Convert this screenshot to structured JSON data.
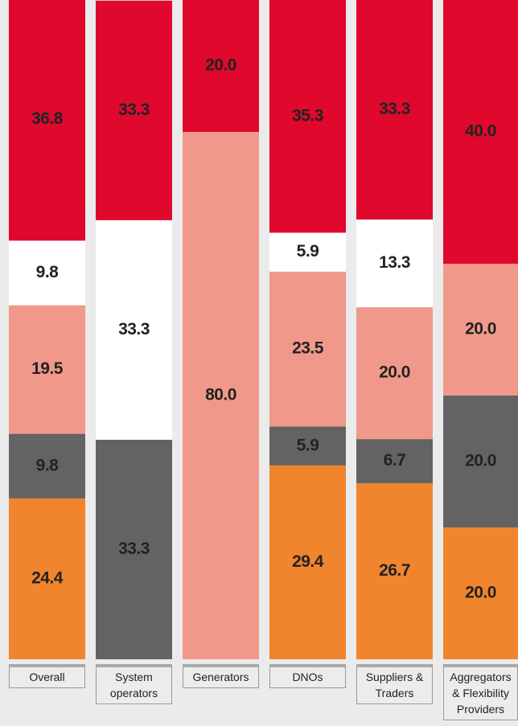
{
  "chart_data": {
    "type": "stacked_bar",
    "categories": [
      "Overall",
      "System\noperators",
      "Generators",
      "DNOs",
      "Suppliers &\nTraders",
      "Aggregators\n& Flexibility\nProviders"
    ],
    "ylim": [
      0,
      100
    ],
    "series": [
      {
        "color": "#f0852d",
        "values": [
          24.4,
          null,
          null,
          29.4,
          26.7,
          20
        ],
        "value_labels": [
          "24.4",
          null,
          null,
          "29.4",
          "26.7",
          "20.0"
        ]
      },
      {
        "color": "#636363",
        "values": [
          9.8,
          33.3,
          null,
          5.9,
          6.7,
          20
        ],
        "value_labels": [
          "9.8",
          "33.3",
          null,
          "5.9",
          "6.7",
          "20.0"
        ]
      },
      {
        "color": "#f0998a",
        "values": [
          19.5,
          null,
          80,
          23.5,
          20,
          20
        ],
        "value_labels": [
          "19.5",
          null,
          "80.0",
          "23.5",
          "20.0",
          "20.0"
        ]
      },
      {
        "color": "#ffffff",
        "values": [
          9.8,
          33.3,
          null,
          5.9,
          13.3,
          null
        ],
        "value_labels": [
          "9.8",
          "33.3",
          null,
          "5.9",
          "13.3",
          null
        ]
      },
      {
        "color": "#e0082d",
        "values": [
          36.8,
          33.3,
          20,
          35.3,
          33.3,
          40
        ],
        "value_labels": [
          "36.8",
          "33.3",
          "20.0",
          "35.3",
          "33.3",
          "40.0"
        ]
      }
    ]
  }
}
